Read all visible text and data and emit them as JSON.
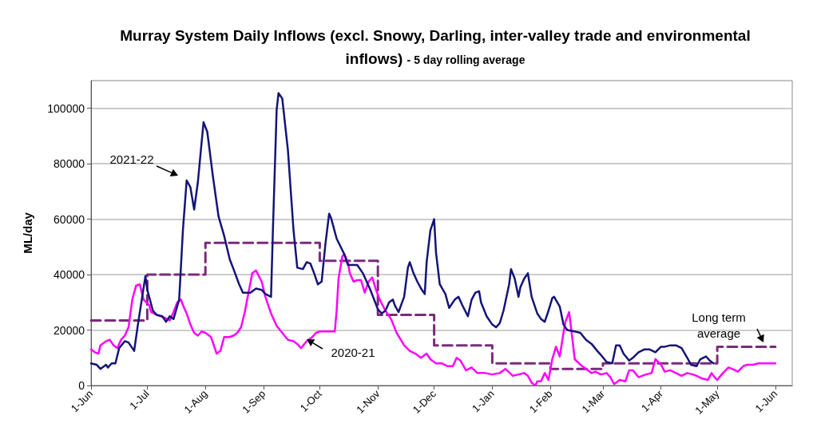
{
  "chart_data": {
    "type": "line",
    "title": "Murray System Daily Inflows (excl. Snowy, Darling, inter-valley trade and environmental inflows)",
    "subtitle": "- 5 day rolling average",
    "ylabel": "ML/day",
    "xlim": [
      "2021-06-01",
      "2022-06-10"
    ],
    "xticks": [
      {
        "value": "2021-06-01",
        "label": "1-Jun"
      },
      {
        "value": "2021-07-01",
        "label": "1-Jul"
      },
      {
        "value": "2021-08-01",
        "label": "1-Aug"
      },
      {
        "value": "2021-09-01",
        "label": "1-Sep"
      },
      {
        "value": "2021-10-01",
        "label": "1-Oct"
      },
      {
        "value": "2021-11-01",
        "label": "1-Nov"
      },
      {
        "value": "2021-12-01",
        "label": "1-Dec"
      },
      {
        "value": "2022-01-01",
        "label": "1-Jan"
      },
      {
        "value": "2022-02-01",
        "label": "1-Feb"
      },
      {
        "value": "2022-03-01",
        "label": "1-Mar"
      },
      {
        "value": "2022-04-01",
        "label": "1-Apr"
      },
      {
        "value": "2022-05-01",
        "label": "1-May"
      },
      {
        "value": "2022-06-01",
        "label": "1-Jun"
      }
    ],
    "ylim": [
      0,
      110000
    ],
    "yticks": [
      0,
      20000,
      40000,
      60000,
      80000,
      100000
    ],
    "grid": "y",
    "marker": "none",
    "series": [
      {
        "name": "Long term average",
        "type": "step",
        "color": "#7b2a7b",
        "line_style": "dashed",
        "x": [
          "2021-06-01",
          "2021-07-01",
          "2021-08-01",
          "2021-09-01",
          "2021-10-01",
          "2021-11-01",
          "2021-12-01",
          "2022-01-01",
          "2022-02-01",
          "2022-03-01",
          "2022-04-01",
          "2022-05-01",
          "2022-06-01"
        ],
        "values": [
          23500,
          40000,
          51500,
          51500,
          45000,
          25500,
          14500,
          8000,
          6000,
          8000,
          8000,
          14000,
          14000
        ]
      },
      {
        "name": "2020-21",
        "color": "#ff00ff",
        "x": [
          "2021-06-01",
          "2021-06-03",
          "2021-06-05",
          "2021-06-06",
          "2021-06-09",
          "2021-06-11",
          "2021-06-13",
          "2021-06-15",
          "2021-06-17",
          "2021-06-19",
          "2021-06-21",
          "2021-06-23",
          "2021-06-25",
          "2021-06-27",
          "2021-06-29",
          "2021-07-02",
          "2021-07-03",
          "2021-07-06",
          "2021-07-08",
          "2021-07-10",
          "2021-07-13",
          "2021-07-15",
          "2021-07-17",
          "2021-07-19",
          "2021-07-20",
          "2021-07-22",
          "2021-07-24",
          "2021-07-26",
          "2021-07-28",
          "2021-07-30",
          "2021-08-01",
          "2021-08-04",
          "2021-08-06",
          "2021-08-07",
          "2021-08-09",
          "2021-08-11",
          "2021-08-14",
          "2021-08-16",
          "2021-08-18",
          "2021-08-20",
          "2021-08-22",
          "2021-08-24",
          "2021-08-26",
          "2021-08-28",
          "2021-08-31",
          "2021-09-02",
          "2021-09-05",
          "2021-09-08",
          "2021-09-11",
          "2021-09-14",
          "2021-09-17",
          "2021-09-19",
          "2021-09-21",
          "2021-09-24",
          "2021-09-27",
          "2021-09-29",
          "2021-10-01",
          "2021-10-05",
          "2021-10-09",
          "2021-10-10",
          "2021-10-11",
          "2021-10-13",
          "2021-10-14",
          "2021-10-16",
          "2021-10-17",
          "2021-10-19",
          "2021-10-21",
          "2021-10-23",
          "2021-10-25",
          "2021-10-27",
          "2021-10-29",
          "2021-10-31",
          "2021-11-02",
          "2021-11-05",
          "2021-11-08",
          "2021-11-11",
          "2021-11-15",
          "2021-11-18",
          "2021-11-21",
          "2021-11-24",
          "2021-11-27",
          "2021-11-29",
          "2021-12-02",
          "2021-12-05",
          "2021-12-08",
          "2021-12-11",
          "2021-12-13",
          "2021-12-15",
          "2021-12-18",
          "2021-12-21",
          "2021-12-24",
          "2021-12-28",
          "2022-01-01",
          "2022-01-05",
          "2022-01-08",
          "2022-01-12",
          "2022-01-15",
          "2022-01-18",
          "2022-01-20",
          "2022-01-22",
          "2022-01-24",
          "2022-01-25",
          "2022-01-27",
          "2022-01-29",
          "2022-01-31",
          "2022-02-02",
          "2022-02-04",
          "2022-02-06",
          "2022-02-08",
          "2022-02-09",
          "2022-02-11",
          "2022-02-12",
          "2022-02-14",
          "2022-02-17",
          "2022-02-20",
          "2022-02-23",
          "2022-02-25",
          "2022-02-28",
          "2022-03-03",
          "2022-03-05",
          "2022-03-07",
          "2022-03-10",
          "2022-03-13",
          "2022-03-15",
          "2022-03-17",
          "2022-03-20",
          "2022-03-24",
          "2022-03-27",
          "2022-03-29",
          "2022-04-01",
          "2022-04-03",
          "2022-04-06",
          "2022-04-09",
          "2022-04-12",
          "2022-04-15",
          "2022-04-18",
          "2022-04-20",
          "2022-04-23",
          "2022-04-26",
          "2022-04-28",
          "2022-04-29",
          "2022-05-01",
          "2022-05-04",
          "2022-05-07",
          "2022-05-09",
          "2022-05-12",
          "2022-05-15",
          "2022-05-17",
          "2022-05-20",
          "2022-05-23",
          "2022-05-27",
          "2022-06-01"
        ],
        "values": [
          13000,
          12000,
          11500,
          14500,
          16000,
          16500,
          14500,
          13500,
          16500,
          18000,
          21000,
          31000,
          36000,
          36500,
          31000,
          29000,
          26500,
          25500,
          25000,
          24500,
          23500,
          26500,
          30000,
          31000,
          29000,
          26000,
          22000,
          19000,
          18000,
          19500,
          19000,
          17500,
          13500,
          11500,
          12500,
          17500,
          17500,
          18000,
          19000,
          21000,
          26500,
          33500,
          40500,
          41500,
          37500,
          32000,
          26000,
          21500,
          19000,
          16500,
          16000,
          15000,
          13500,
          16000,
          17500,
          19000,
          19500,
          19500,
          19500,
          27000,
          38500,
          46500,
          47500,
          44500,
          40500,
          37500,
          38000,
          38000,
          33500,
          37500,
          39000,
          34500,
          31000,
          27000,
          24000,
          19000,
          14500,
          12500,
          11500,
          10000,
          11500,
          9500,
          8000,
          8000,
          7000,
          7000,
          10000,
          9000,
          5500,
          6500,
          4500,
          4500,
          4000,
          4500,
          6000,
          3500,
          4000,
          4500,
          3500,
          1000,
          0,
          1500,
          1500,
          4500,
          2000,
          9500,
          14000,
          10500,
          19000,
          23000,
          26500,
          21000,
          9500,
          7500,
          6000,
          4500,
          5000,
          4000,
          4500,
          3000,
          500,
          2000,
          1500,
          5500,
          5500,
          3000,
          4000,
          4500,
          9500,
          7500,
          5000,
          5500,
          4500,
          3500,
          4500,
          4000,
          3500,
          2500,
          2000,
          4500,
          3500,
          2000,
          4500,
          6500,
          6000,
          5000,
          7000,
          7500,
          7500,
          8000,
          8000,
          8000
        ]
      },
      {
        "name": "2021-22",
        "color": "#141478",
        "x": [
          "2021-06-01",
          "2021-06-04",
          "2021-06-06",
          "2021-06-09",
          "2021-06-10",
          "2021-06-12",
          "2021-06-14",
          "2021-06-16",
          "2021-06-19",
          "2021-06-21",
          "2021-06-24",
          "2021-06-26",
          "2021-06-30",
          "2021-07-01",
          "2021-07-04",
          "2021-07-06",
          "2021-07-09",
          "2021-07-11",
          "2021-07-13",
          "2021-07-15",
          "2021-07-18",
          "2021-07-20",
          "2021-07-22",
          "2021-07-24",
          "2021-07-26",
          "2021-07-28",
          "2021-07-31",
          "2021-08-02",
          "2021-08-05",
          "2021-08-08",
          "2021-08-11",
          "2021-08-14",
          "2021-08-16",
          "2021-08-19",
          "2021-08-21",
          "2021-08-25",
          "2021-08-28",
          "2021-08-31",
          "2021-09-02",
          "2021-09-05",
          "2021-09-06",
          "2021-09-08",
          "2021-09-09",
          "2021-09-11",
          "2021-09-14",
          "2021-09-17",
          "2021-09-19",
          "2021-09-22",
          "2021-09-24",
          "2021-09-26",
          "2021-09-28",
          "2021-09-30",
          "2021-10-02",
          "2021-10-04",
          "2021-10-06",
          "2021-10-07",
          "2021-10-10",
          "2021-10-14",
          "2021-10-16",
          "2021-10-21",
          "2021-10-24",
          "2021-10-28",
          "2021-11-01",
          "2021-11-03",
          "2021-11-05",
          "2021-11-07",
          "2021-11-09",
          "2021-11-10",
          "2021-11-12",
          "2021-11-15",
          "2021-11-17",
          "2021-11-18",
          "2021-11-20",
          "2021-11-22",
          "2021-11-24",
          "2021-11-26",
          "2021-11-27",
          "2021-11-29",
          "2021-12-01",
          "2021-12-02",
          "2021-12-04",
          "2021-12-07",
          "2021-12-09",
          "2021-12-12",
          "2021-12-14",
          "2021-12-16",
          "2021-12-19",
          "2021-12-21",
          "2021-12-23",
          "2021-12-25",
          "2021-12-26",
          "2021-12-29",
          "2022-01-01",
          "2022-01-03",
          "2022-01-05",
          "2022-01-07",
          "2022-01-10",
          "2022-01-11",
          "2022-01-13",
          "2022-01-15",
          "2022-01-16",
          "2022-01-18",
          "2022-01-20",
          "2022-01-22",
          "2022-01-25",
          "2022-01-27",
          "2022-01-29",
          "2022-01-31",
          "2022-02-02",
          "2022-02-03",
          "2022-02-06",
          "2022-02-08",
          "2022-02-10",
          "2022-02-14",
          "2022-02-17",
          "2022-02-20",
          "2022-02-23",
          "2022-02-26",
          "2022-02-28",
          "2022-03-03",
          "2022-03-06",
          "2022-03-08",
          "2022-03-10",
          "2022-03-12",
          "2022-03-15",
          "2022-03-17",
          "2022-03-20",
          "2022-03-23",
          "2022-03-26",
          "2022-03-29",
          "2022-04-01",
          "2022-04-03",
          "2022-04-06",
          "2022-04-09",
          "2022-04-12",
          "2022-04-15",
          "2022-04-17",
          "2022-04-20",
          "2022-04-22",
          "2022-04-25",
          "2022-04-27",
          "2022-04-29"
        ],
        "values": [
          8000,
          7500,
          6000,
          7500,
          6500,
          8000,
          8000,
          13500,
          16000,
          15500,
          12500,
          22000,
          39500,
          34500,
          27000,
          25500,
          25000,
          23000,
          25000,
          24000,
          31000,
          56000,
          74000,
          71500,
          63500,
          73500,
          95000,
          91500,
          75500,
          61000,
          54000,
          45500,
          42000,
          36500,
          33500,
          33500,
          35000,
          34500,
          33000,
          32000,
          56000,
          99500,
          105500,
          103500,
          85000,
          56000,
          42500,
          42000,
          44500,
          44000,
          40500,
          36500,
          37500,
          51000,
          62000,
          60500,
          53000,
          47500,
          43500,
          43500,
          40500,
          34500,
          27500,
          26000,
          27000,
          30000,
          31000,
          29000,
          26500,
          32000,
          42500,
          44500,
          40500,
          37500,
          35000,
          33000,
          44500,
          56000,
          60000,
          48000,
          36500,
          33000,
          28000,
          31000,
          32000,
          29000,
          25000,
          31000,
          33500,
          34000,
          30000,
          25000,
          22000,
          21000,
          22500,
          27000,
          36500,
          42000,
          38500,
          32000,
          35500,
          38500,
          40500,
          32000,
          26000,
          24000,
          23000,
          27000,
          31500,
          32000,
          28500,
          22000,
          20000,
          19500,
          19000,
          16500,
          15000,
          12500,
          11000,
          8500,
          8000,
          14500,
          14500,
          11500,
          9000,
          10000,
          12000,
          13000,
          13000,
          12000,
          14000,
          14000,
          14500,
          14500,
          13500,
          10000,
          7500,
          7000,
          9500,
          10500,
          9000,
          8000
        ]
      }
    ]
  }
}
